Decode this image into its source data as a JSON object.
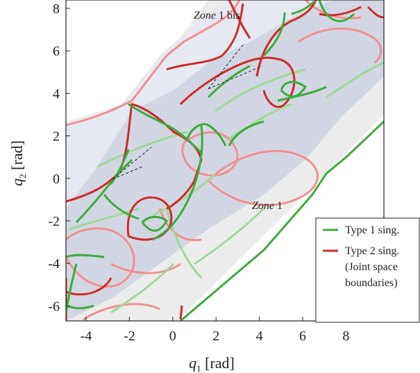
{
  "chart": {
    "x_ticks": [
      "-4",
      "-2",
      "0",
      "2",
      "4",
      "6",
      "8"
    ],
    "y_ticks": [
      "8",
      "6",
      "4",
      "2",
      "0",
      "-2",
      "-4",
      "-6"
    ],
    "x_axis": {
      "var": "q",
      "sub": "1",
      "unit": " [rad]"
    },
    "y_axis": {
      "var": "q",
      "sub": "2",
      "unit": " [rad]"
    },
    "zone_bis": {
      "italic": "Zone",
      "rest": " 1 bis"
    },
    "zone_main": {
      "italic": "Zone",
      "rest": " 1"
    }
  },
  "legend": {
    "type1": "Type 1 sing.",
    "type2_lines": [
      "Type 2 sing.",
      "(Joint space",
      "boundaries)"
    ]
  },
  "colors": {
    "type1": "#3daa3d",
    "type1_light": "#9fd89a",
    "type2": "#cc2a2a",
    "type2_light": "#ee9090",
    "zone_fill": "#d2d6e2",
    "zone_bis_fill": "#e6e8f2",
    "outer_fill": "#ececec"
  }
}
